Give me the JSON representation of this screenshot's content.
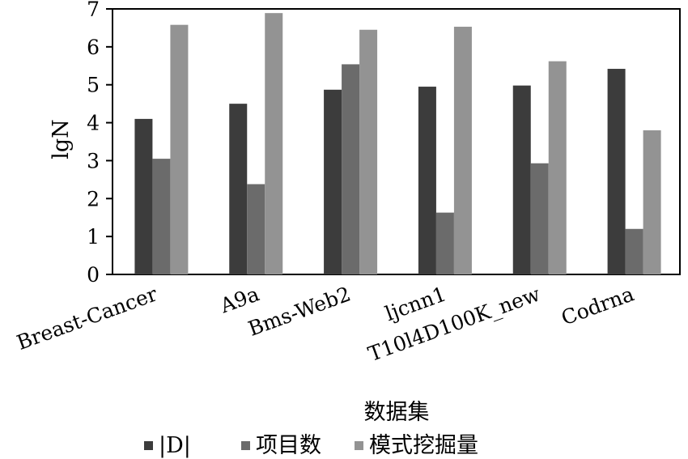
{
  "chart_data": {
    "type": "bar",
    "categories": [
      "Breast-Cancer",
      "A9a",
      "Bms-Web2",
      "ljcnn1",
      "T10l4D100K_new",
      "Codrna"
    ],
    "series": [
      {
        "name": "|D|",
        "values": [
          4.1,
          4.5,
          4.87,
          4.95,
          4.98,
          5.42
        ],
        "color": "#3c3c3c"
      },
      {
        "name": "项目数",
        "values": [
          3.05,
          2.38,
          5.54,
          1.63,
          2.93,
          1.2
        ],
        "color": "#6b6b6b"
      },
      {
        "name": "模式挖掘量",
        "values": [
          6.58,
          6.89,
          6.45,
          6.53,
          5.62,
          3.8
        ],
        "color": "#939393"
      }
    ],
    "xlabel": "数据集",
    "ylabel": "lgN",
    "ylim": [
      0,
      7
    ],
    "yticks": [
      0,
      1,
      2,
      3,
      4,
      5,
      6,
      7
    ],
    "grid": false,
    "legend_position": "bottom"
  }
}
